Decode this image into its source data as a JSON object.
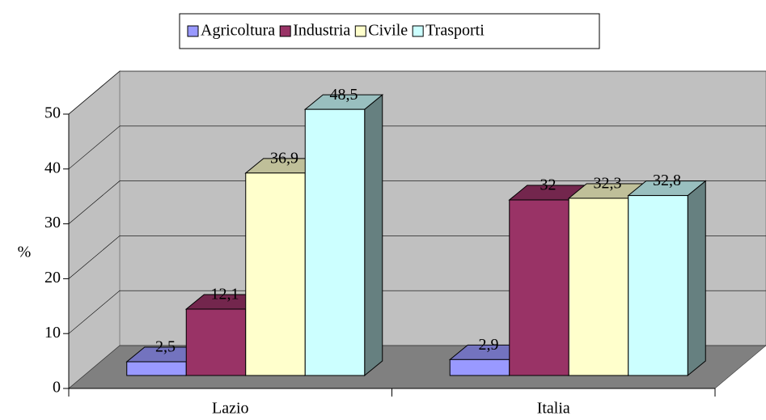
{
  "chart_data": {
    "type": "bar3d",
    "categories": [
      "Lazio",
      "Italia"
    ],
    "series": [
      {
        "name": "Agricoltura",
        "color": "#9999ff",
        "values": [
          2.5,
          2.9
        ],
        "value_labels": [
          "2,5",
          "2,9"
        ]
      },
      {
        "name": "Industria",
        "color": "#993366",
        "values": [
          12.1,
          32
        ],
        "value_labels": [
          "12,1",
          "32"
        ]
      },
      {
        "name": "Civile",
        "color": "#ffffcc",
        "values": [
          36.9,
          32.3
        ],
        "value_labels": [
          "36,9",
          "32,3"
        ]
      },
      {
        "name": "Trasporti",
        "color": "#ccffff",
        "values": [
          48.5,
          32.8
        ],
        "value_labels": [
          "48,5",
          "32,8"
        ]
      }
    ],
    "ylabel": "%",
    "ylim": [
      0,
      50
    ],
    "yticks": [
      0,
      10,
      20,
      30,
      40,
      50
    ],
    "grid": true,
    "legend": "top"
  }
}
